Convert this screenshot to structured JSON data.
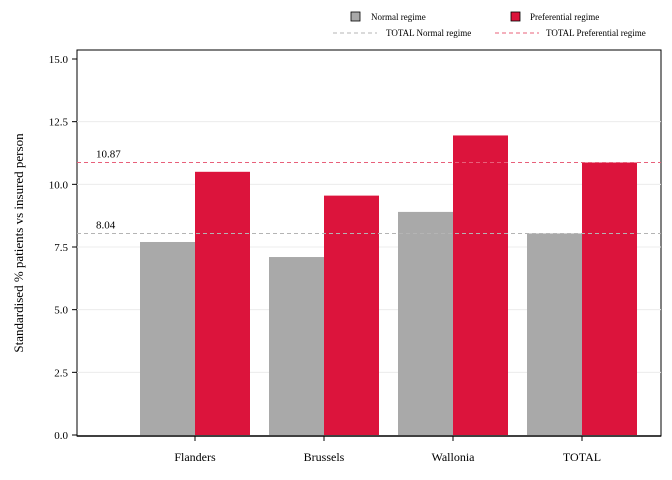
{
  "chart_data": {
    "type": "bar",
    "categories": [
      "Flanders",
      "Brussels",
      "Wallonia",
      "TOTAL"
    ],
    "series": [
      {
        "name": "Normal regime",
        "values": [
          7.7,
          7.1,
          8.9,
          8.04
        ],
        "color": "#a9a9a9"
      },
      {
        "name": "Preferential regime",
        "values": [
          10.5,
          9.55,
          11.95,
          10.87
        ],
        "color": "#dc143c"
      }
    ],
    "reference_lines": [
      {
        "name": "TOTAL Normal regime",
        "value": 8.04,
        "label": "8.04",
        "color": "#b4b4b4",
        "style": "dashed"
      },
      {
        "name": "TOTAL Preferential regime",
        "value": 10.87,
        "label": "10.87",
        "color": "#e8607a",
        "style": "dashed"
      }
    ],
    "title": "",
    "xlabel": "",
    "ylabel": "Standardised % patients vs insured person",
    "ylim": [
      0,
      15
    ],
    "yticks": [
      "0.0",
      "2.5",
      "5.0",
      "7.5",
      "10.0",
      "12.5",
      "15.0"
    ],
    "grid": true,
    "legend_position": "top-right"
  }
}
